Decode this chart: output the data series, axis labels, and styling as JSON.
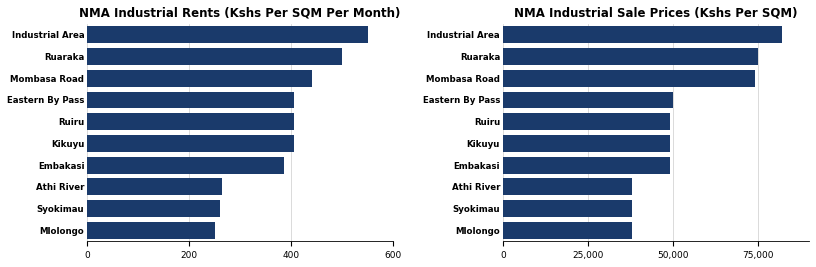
{
  "rent_title": "NMA Industrial Rents (Kshs Per SQM Per Month)",
  "sale_title": "NMA Industrial Sale Prices (Kshs Per SQM)",
  "categories": [
    "Industrial Area",
    "Ruaraka",
    "Mombasa Road",
    "Eastern By Pass",
    "Ruiru",
    "Kikuyu",
    "Embakasi",
    "Athi River",
    "Syokimau",
    "Mlolongo"
  ],
  "rent_values": [
    550,
    500,
    440,
    405,
    405,
    405,
    385,
    265,
    260,
    250
  ],
  "sale_values": [
    82000,
    75000,
    74000,
    50000,
    49000,
    49000,
    49000,
    38000,
    38000,
    38000
  ],
  "bar_color": "#1a3a6b",
  "bg_color": "#ffffff",
  "rent_xlim": [
    0,
    600
  ],
  "sale_xlim": [
    0,
    90000
  ],
  "rent_xticks": [
    0,
    200,
    400,
    600
  ],
  "sale_xticks": [
    0,
    25000,
    50000,
    75000
  ],
  "title_fontsize": 8.5,
  "label_fontsize": 6.2,
  "tick_fontsize": 6.5,
  "bar_height": 0.78
}
